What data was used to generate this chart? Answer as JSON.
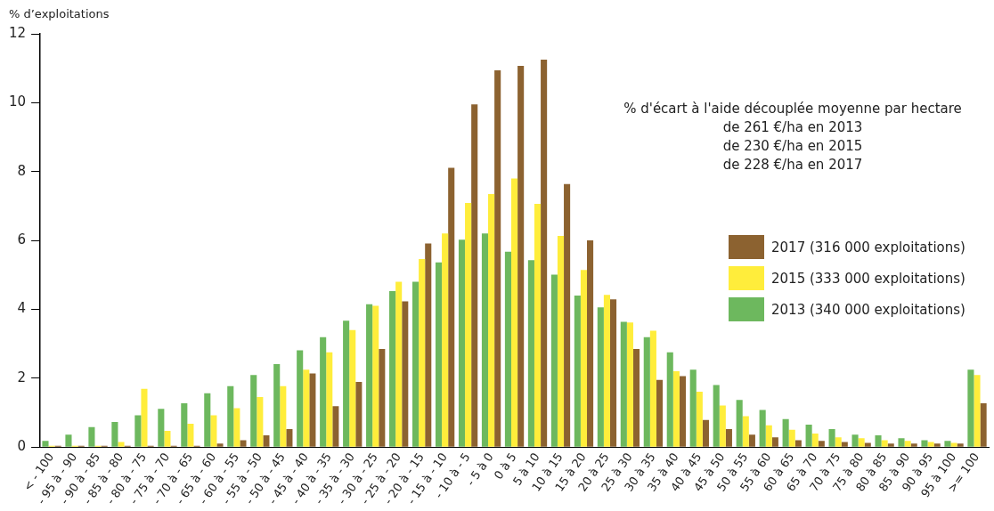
{
  "chart_data": {
    "type": "bar",
    "ylabel": "% d’exploitations",
    "categories": [
      "< - 100",
      "- 95 à - 90",
      "- 90 à - 85",
      "- 85 à - 80",
      "- 80 à - 75",
      "- 75 à - 70",
      "- 70 à - 65",
      "- 65 à - 60",
      "- 60 à - 55",
      "- 55 à - 50",
      "- 50 à - 45",
      "- 45 à - 40",
      "- 40 à - 35",
      "- 35 à - 30",
      "- 30 à - 25",
      "- 25 à - 20",
      "- 20 à - 15",
      "- 15 à - 10",
      "- 10 à - 5",
      "- 5 à 0",
      "0 à 5",
      "5 à 10",
      "10 à 15",
      "15 à 20",
      "20 à 25",
      "25 à 30",
      "30 à 35",
      "35 à 40",
      "40 à 45",
      "45 à 50",
      "50 à 55",
      "55 à 60",
      "60 à 65",
      "65 à 70",
      "70 à 75",
      "75 à 80",
      "80 à 85",
      "85 à 90",
      "90 à 95",
      "95 à 100",
      ">= 100"
    ],
    "series": [
      {
        "name": "2013 (340 000 exploitations)",
        "color": "#6db85e",
        "values": [
          0.18,
          0.36,
          0.58,
          0.73,
          0.92,
          1.11,
          1.27,
          1.56,
          1.77,
          2.09,
          2.41,
          2.81,
          3.19,
          3.67,
          4.15,
          4.53,
          4.8,
          5.36,
          6.02,
          6.2,
          5.67,
          5.43,
          5.01,
          4.4,
          4.06,
          3.64,
          3.19,
          2.75,
          2.25,
          1.8,
          1.37,
          1.08,
          0.81,
          0.65,
          0.52,
          0.36,
          0.34,
          0.26,
          0.2,
          0.18,
          2.25
        ]
      },
      {
        "name": "2015 (333 000 exploitations)",
        "color": "#ffed3b",
        "values": [
          0.04,
          0.04,
          0.04,
          0.15,
          1.69,
          0.47,
          0.68,
          0.92,
          1.13,
          1.45,
          1.77,
          2.25,
          2.75,
          3.4,
          4.1,
          4.8,
          5.46,
          6.2,
          7.09,
          7.35,
          7.8,
          7.06,
          6.13,
          5.14,
          4.42,
          3.62,
          3.38,
          2.2,
          1.61,
          1.21,
          0.9,
          0.63,
          0.5,
          0.39,
          0.28,
          0.26,
          0.2,
          0.18,
          0.15,
          0.12,
          2.09
        ]
      },
      {
        "name": "2017 (316 000 exploitations)",
        "color": "#8c6230",
        "values": [
          0.04,
          0.04,
          0.04,
          0.04,
          0.04,
          0.04,
          0.04,
          0.1,
          0.2,
          0.34,
          0.52,
          2.14,
          1.19,
          1.89,
          2.85,
          4.23,
          5.91,
          8.11,
          9.95,
          10.94,
          11.07,
          11.25,
          7.64,
          6,
          4.29,
          2.85,
          1.95,
          2.06,
          0.79,
          0.52,
          0.36,
          0.28,
          0.2,
          0.18,
          0.15,
          0.12,
          0.1,
          0.1,
          0.1,
          0.1,
          1.27
        ]
      }
    ],
    "ylim": [
      0,
      12
    ],
    "yticks": [
      0,
      2,
      4,
      6,
      8,
      10,
      12
    ],
    "grid": false,
    "legend": "right",
    "annotations": [
      "% d'écart à l'aide découplée moyenne par hectare",
      "de 261 €/ha en 2013",
      "de 230 €/ha en 2015",
      "de 228 €/ha en 2017"
    ]
  }
}
